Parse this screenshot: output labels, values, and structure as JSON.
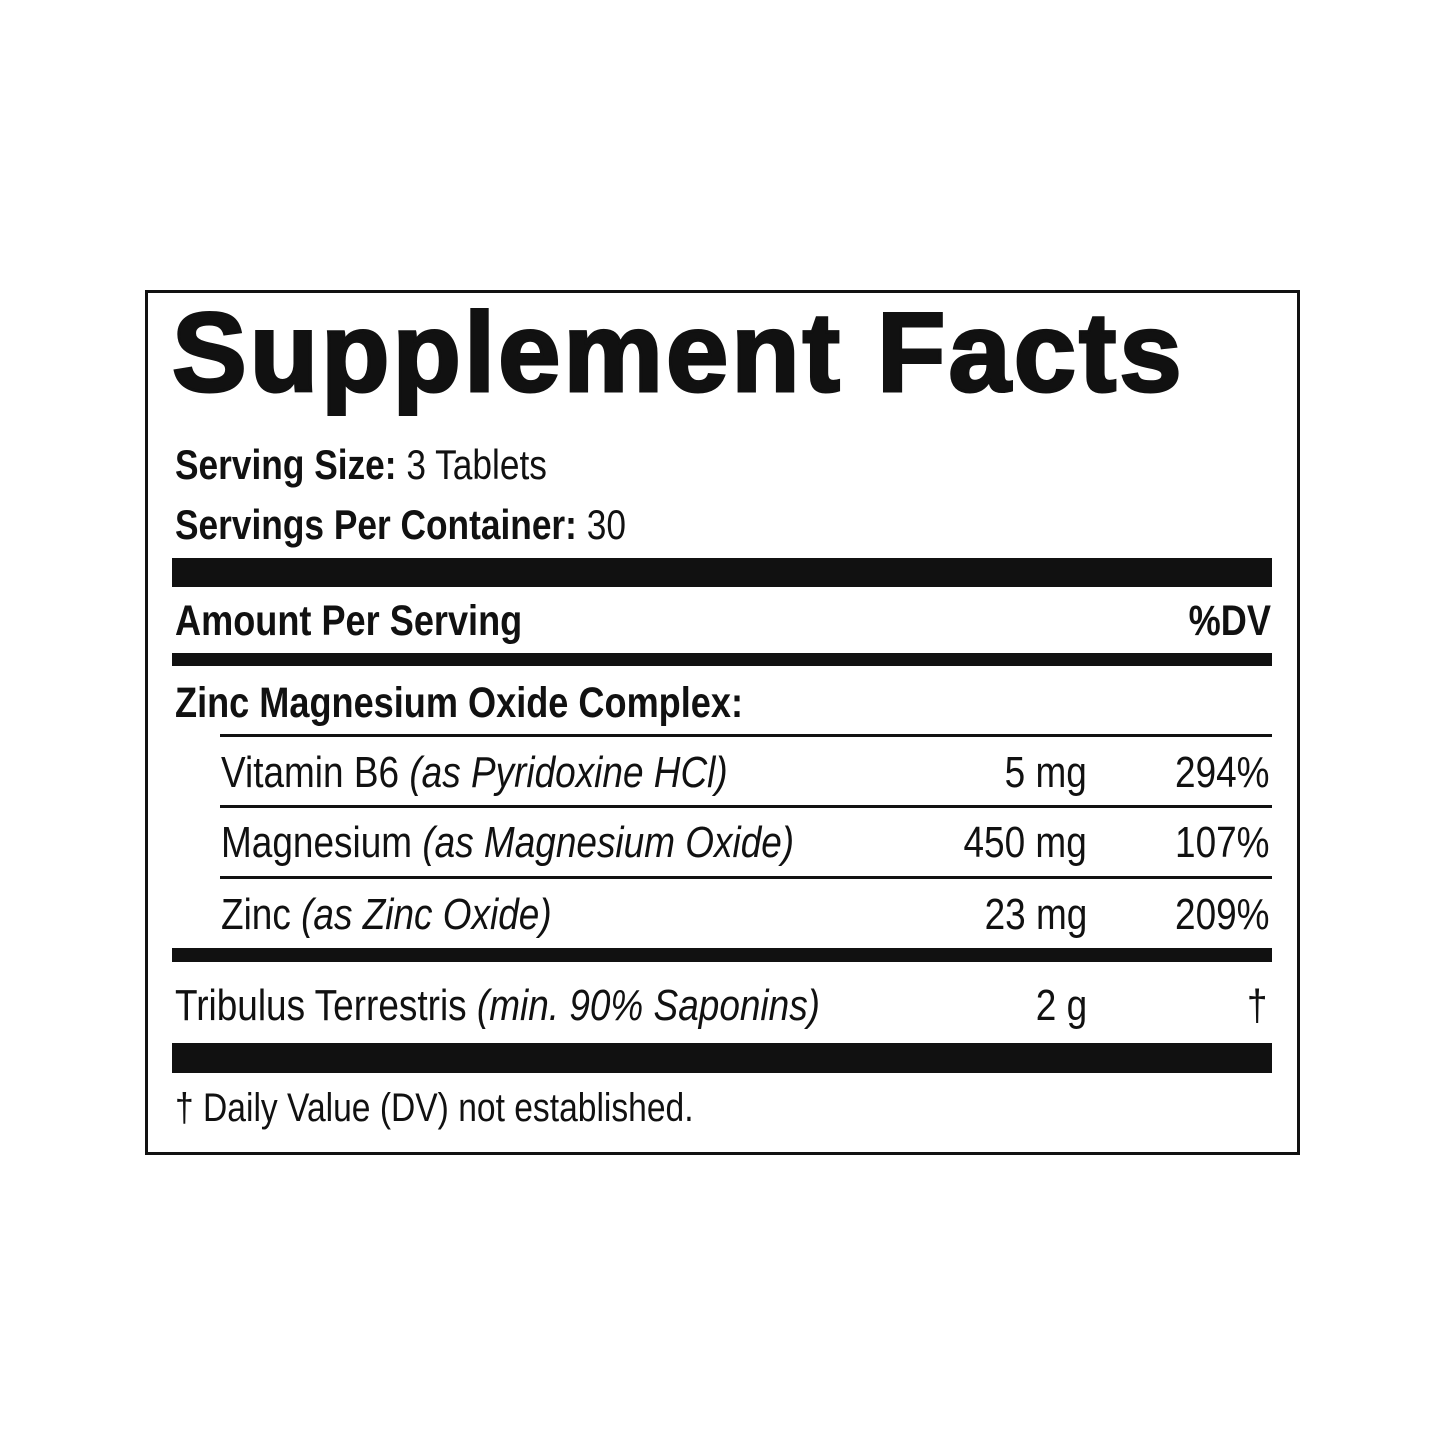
{
  "title": "Supplement Facts",
  "serving": {
    "size_label": "Serving Size:",
    "size_value": "3 Tablets",
    "per_container_label": "Servings Per Container:",
    "per_container_value": "30"
  },
  "header": {
    "amount_label": "Amount Per Serving",
    "dv_label": "%DV"
  },
  "complex_name": "Zinc Magnesium Oxide Complex:",
  "ingredients": [
    {
      "name": "Vitamin B6",
      "source": "(as Pyridoxine HCl)",
      "amount": "5 mg",
      "dv": "294%"
    },
    {
      "name": "Magnesium",
      "source": "(as Magnesium Oxide)",
      "amount": "450 mg",
      "dv": "107%"
    },
    {
      "name": "Zinc",
      "source": "(as Zinc Oxide)",
      "amount": "23 mg",
      "dv": "209%"
    }
  ],
  "other": {
    "name": "Tribulus Terrestris",
    "source": "(min. 90% Saponins)",
    "amount": "2 g",
    "dv": "†"
  },
  "footnote": "† Daily Value (DV) not established."
}
